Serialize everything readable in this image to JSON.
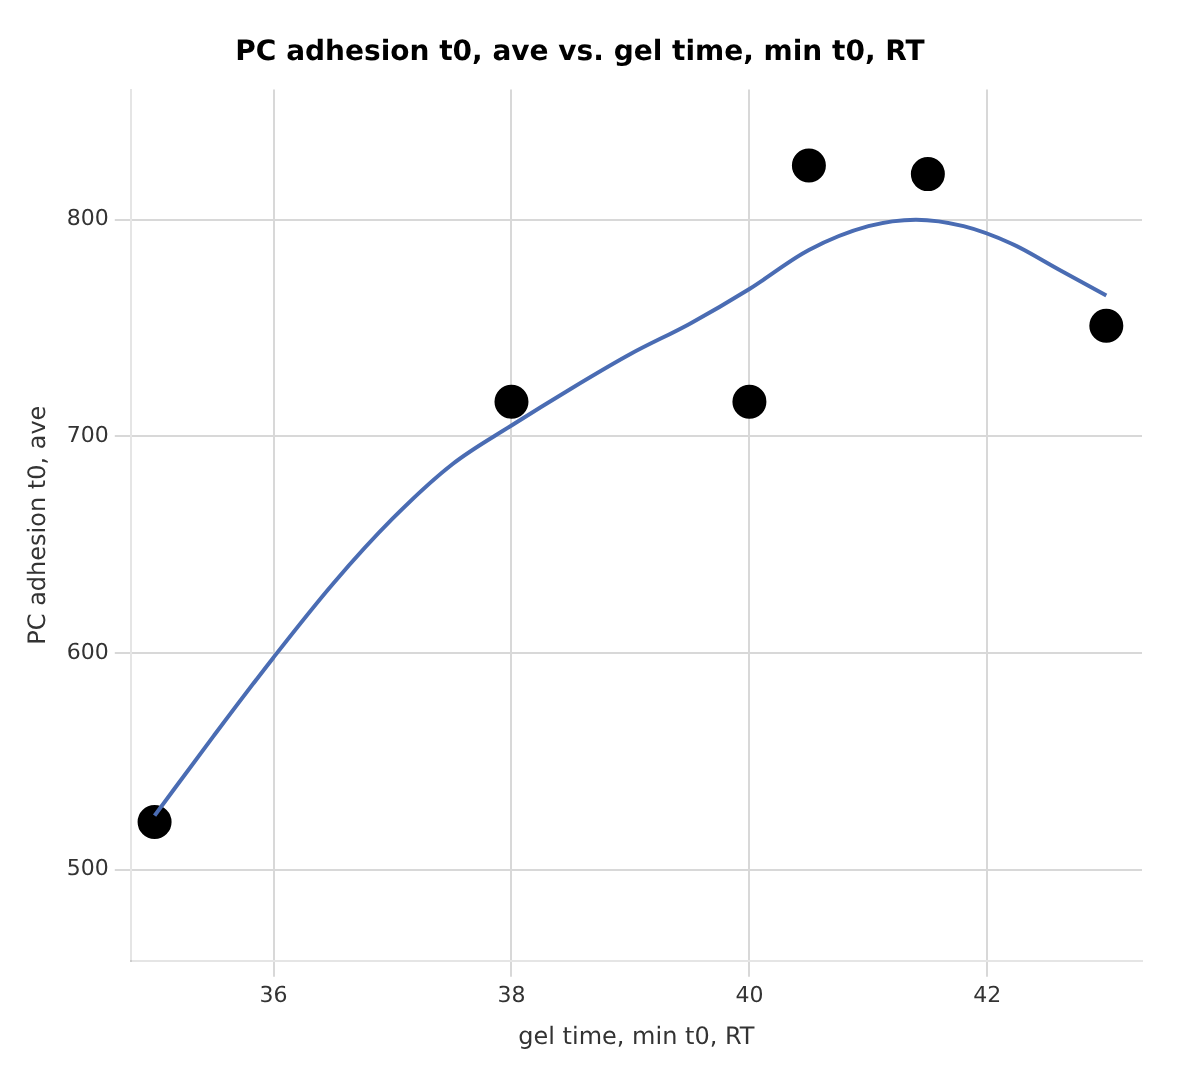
{
  "chart_data": {
    "type": "scatter",
    "title": "PC adhesion t0, ave vs. gel time, min t0, RT",
    "xlabel": "gel time, min t0, RT",
    "ylabel": "PC adhesion t0, ave",
    "series": [
      {
        "type": "scatter",
        "color": "#000000",
        "x": [
          35,
          38,
          40,
          40.5,
          41.5,
          43
        ],
        "values": [
          522,
          716,
          716,
          825,
          821,
          751
        ],
        "marker": "circle"
      },
      {
        "type": "line",
        "color": "#4a6cb3",
        "x": [
          35,
          35.5,
          36,
          36.5,
          37,
          37.5,
          38,
          38.5,
          39,
          39.5,
          40,
          40.5,
          41,
          41.4,
          41.8,
          42.2,
          42.6,
          43
        ],
        "values": [
          525,
          562,
          598,
          632,
          662,
          687,
          705,
          722,
          738,
          752,
          768,
          786,
          797,
          800,
          797,
          789,
          777,
          765
        ],
        "marker": "none"
      }
    ],
    "xlim": [
      34.8,
      43.3
    ],
    "xticks": [
      36,
      38,
      40,
      42
    ],
    "ylim": [
      458,
      860
    ],
    "yticks": [
      500,
      600,
      700,
      800
    ],
    "grid": true
  }
}
